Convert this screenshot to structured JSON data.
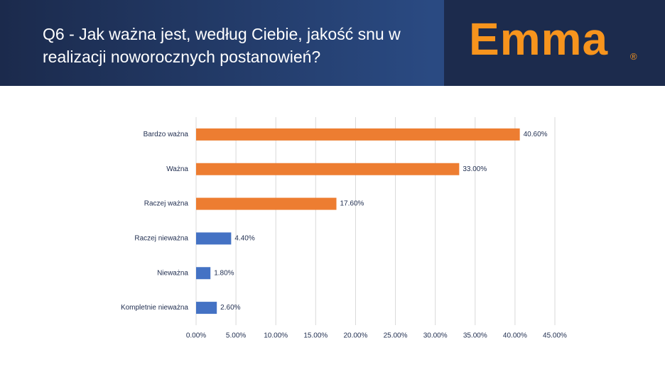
{
  "chart_data": {
    "type": "barh",
    "title": "Q6 - Jak ważna jest, według Ciebie, jakość snu w realizacji noworocznych postanowień?",
    "categories": [
      "Bardzo ważna",
      "Ważna",
      "Raczej ważna",
      "Raczej nieważna",
      "Nieważna",
      "Kompletnie nieważna"
    ],
    "values": [
      40.6,
      33.0,
      17.6,
      4.4,
      1.8,
      2.6
    ],
    "value_labels": [
      "40.60%",
      "33.00%",
      "17.60%",
      "4.40%",
      "1.80%",
      "2.60%"
    ],
    "colors": [
      "#ed7d31",
      "#ed7d31",
      "#ed7d31",
      "#4472c4",
      "#4472c4",
      "#4472c4"
    ],
    "xlim": [
      0,
      45
    ],
    "xticks": [
      {
        "value": 0,
        "label": "0.00%"
      },
      {
        "value": 5,
        "label": "5.00%"
      },
      {
        "value": 10,
        "label": "10.00%"
      },
      {
        "value": 15,
        "label": "15.00%"
      },
      {
        "value": 20,
        "label": "20.00%"
      },
      {
        "value": 25,
        "label": "25.00%"
      },
      {
        "value": 30,
        "label": "30.00%"
      },
      {
        "value": 35,
        "label": "35.00%"
      },
      {
        "value": 40,
        "label": "40.00%"
      },
      {
        "value": 45,
        "label": "45.00%"
      }
    ],
    "grid": true
  },
  "logo": {
    "text": "Emma",
    "mark": "®"
  }
}
